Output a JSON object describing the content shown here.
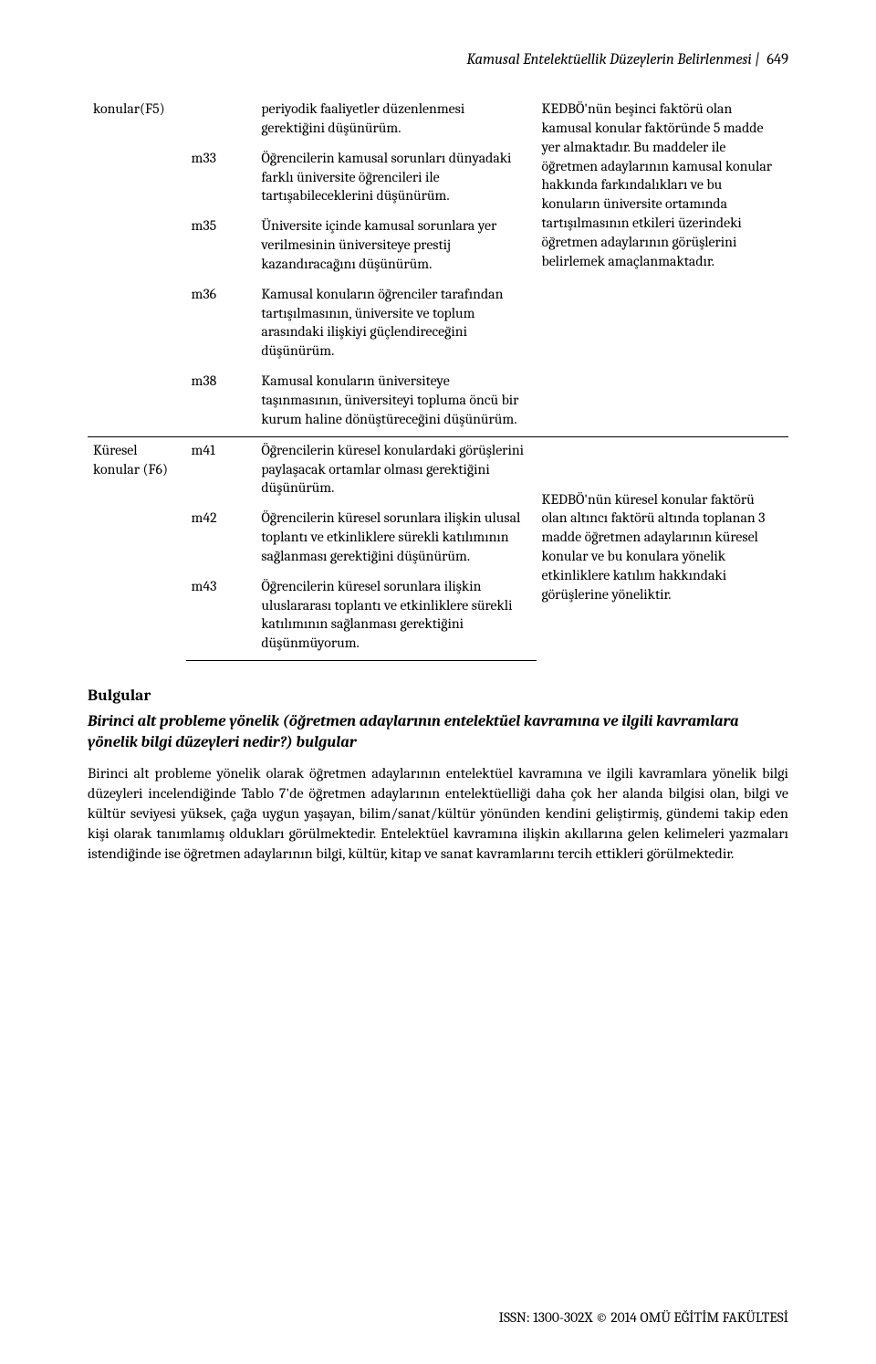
{
  "header": {
    "running_title": "Kamusal Entelektüellik Düzeylerin Belirlenmesi",
    "page_number": "649"
  },
  "table": {
    "rows": [
      {
        "factor": "konular(F5)",
        "item": "",
        "desc": "periyodik faaliyetler düzenlenmesi gerektiğini düşünürüm.",
        "note": "KEDBÖ'nün beşinci faktörü olan kamusal konular faktöründe 5 madde yer almaktadır. Bu maddeler ile öğretmen adaylarının kamusal konular hakkında farkındalıkları ve bu konuların üniversite ortamında tartışılmasının etkileri üzerindeki öğretmen adaylarının görüşlerini belirlemek amaçlanmaktadır."
      },
      {
        "factor": "",
        "item": "m33",
        "desc": "Öğrencilerin kamusal sorunları dünyadaki farklı üniversite öğrencileri ile tartışabileceklerini düşünürüm."
      },
      {
        "factor": "",
        "item": "m35",
        "desc": "Üniversite içinde kamusal sorunlara yer verilmesinin üniversiteye prestij kazandıracağını düşünürüm."
      },
      {
        "factor": "",
        "item": "m36",
        "desc": "Kamusal konuların öğrenciler tarafından tartışılmasının, üniversite ve toplum arasındaki ilişkiyi güçlendireceğini düşünürüm."
      },
      {
        "factor": "",
        "item": "m38",
        "desc": "Kamusal konuların üniversiteye taşınmasının, üniversiteyi topluma öncü bir kurum haline dönüştüreceğini düşünürüm."
      },
      {
        "factor": "Küresel konular (F6)",
        "item": "m41",
        "desc": "Öğrencilerin küresel konulardaki görüşlerini paylaşacak ortamlar olması gerektiğini düşünürüm.",
        "note": "KEDBÖ'nün küresel konular faktörü olan altıncı faktörü altında toplanan 3 madde öğretmen adaylarının küresel konular ve bu konulara yönelik etkinliklere katılım hakkındaki görüşlerine yöneliktir."
      },
      {
        "factor": "",
        "item": "m42",
        "desc": "Öğrencilerin küresel sorunlara ilişkin ulusal toplantı ve etkinliklere sürekli katılımının sağlanması gerektiğini düşünürüm."
      },
      {
        "factor": "",
        "item": "m43",
        "desc": "Öğrencilerin küresel sorunlara ilişkin uluslararası toplantı ve etkinliklere sürekli katılımının sağlanması gerektiğini düşünmüyorum."
      }
    ]
  },
  "sections": {
    "bulgular_heading": "Bulgular",
    "subhead": "Birinci alt probleme yönelik (öğretmen adaylarının entelektüel kavramına ve ilgili kavramlara yönelik bilgi düzeyleri nedir?) bulgular",
    "paragraph": "Birinci alt probleme yönelik olarak öğretmen adaylarının entelektüel kavramına ve ilgili kavramlara yönelik bilgi düzeyleri incelendiğinde Tablo 7'de öğretmen adaylarının entelektüelliği daha çok her alanda bilgisi olan, bilgi ve kültür seviyesi yüksek, çağa uygun yaşayan, bilim/sanat/kültür yönünden kendini geliştirmiş, gündemi takip eden kişi olarak tanımlamış oldukları görülmektedir. Entelektüel kavramına ilişkin akıllarına gelen kelimeleri yazmaları istendiğinde ise öğretmen adaylarının bilgi, kültür, kitap ve sanat kavramlarını tercih ettikleri görülmektedir."
  },
  "footer": {
    "text": "ISSN: 1300-302X © 2014 OMÜ EĞİTİM FAKÜLTESİ"
  }
}
